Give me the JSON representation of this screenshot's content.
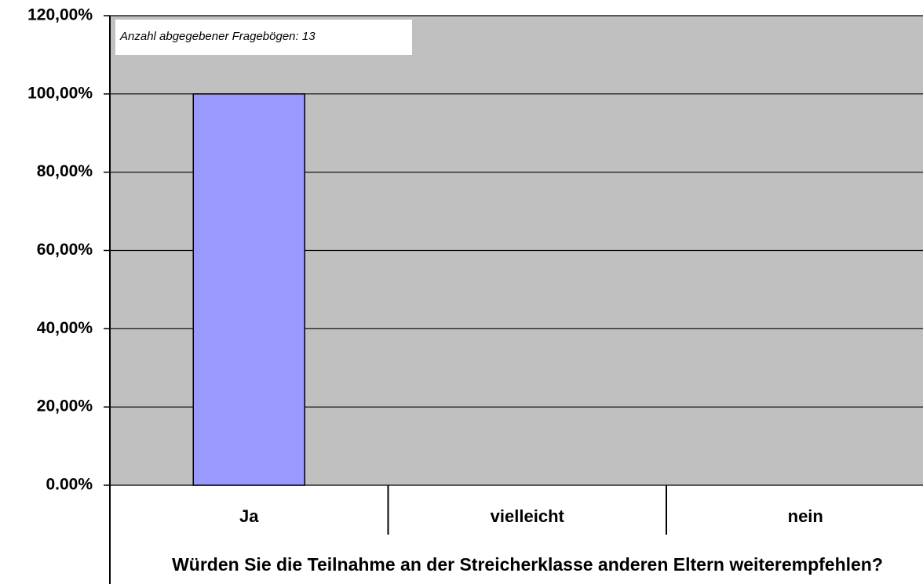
{
  "chart_data": {
    "type": "bar",
    "annotation": "Anzahl abgegebener Fragebögen: 13",
    "x_label": "Würden Sie die Teilnahme an der Streicherklasse anderen Eltern weiterempfehlen?",
    "categories": [
      "Ja",
      "vielleicht",
      "nein"
    ],
    "values": [
      100,
      0,
      0
    ],
    "color": "#9999ff",
    "ylim": [
      0,
      120
    ],
    "yticks": [
      {
        "value": 0,
        "label": "0.00%"
      },
      {
        "value": 20,
        "label": "20,00%"
      },
      {
        "value": 40,
        "label": "40,00%"
      },
      {
        "value": 60,
        "label": "60,00%"
      },
      {
        "value": 80,
        "label": "80,00%"
      },
      {
        "value": 100,
        "label": "100,00%"
      },
      {
        "value": 120,
        "label": "120,00%"
      }
    ],
    "grid": true
  }
}
